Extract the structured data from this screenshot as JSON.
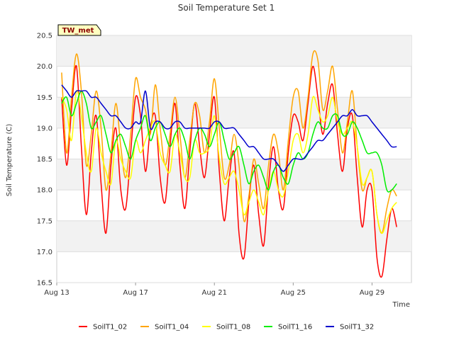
{
  "chart_data": {
    "type": "line",
    "title": "Soil Temperature Set 1",
    "xlabel": "Time",
    "ylabel": "Soil Temperature (C)",
    "badge": "TW_met",
    "x_ticks": [
      "Aug 13",
      "Aug 17",
      "Aug 21",
      "Aug 25",
      "Aug 29"
    ],
    "y_ticks": [
      "16.5",
      "17.0",
      "17.5",
      "18.0",
      "18.5",
      "19.0",
      "19.5",
      "20.0",
      "20.5"
    ],
    "ylim": [
      16.5,
      20.5
    ],
    "xlim": [
      "Aug 13",
      "Aug 31"
    ],
    "grid": true,
    "legend_position": "bottom",
    "x": [
      "Aug 13 06:00",
      "Aug 13 12:00",
      "Aug 13 18:00",
      "Aug 14 00:00",
      "Aug 14 06:00",
      "Aug 14 12:00",
      "Aug 14 18:00",
      "Aug 15 00:00",
      "Aug 15 06:00",
      "Aug 15 12:00",
      "Aug 15 18:00",
      "Aug 16 00:00",
      "Aug 16 06:00",
      "Aug 16 12:00",
      "Aug 16 18:00",
      "Aug 17 00:00",
      "Aug 17 06:00",
      "Aug 17 12:00",
      "Aug 17 18:00",
      "Aug 18 00:00",
      "Aug 18 06:00",
      "Aug 18 12:00",
      "Aug 18 18:00",
      "Aug 19 00:00",
      "Aug 19 06:00",
      "Aug 19 12:00",
      "Aug 19 18:00",
      "Aug 20 00:00",
      "Aug 20 06:00",
      "Aug 20 12:00",
      "Aug 20 18:00",
      "Aug 21 00:00",
      "Aug 21 06:00",
      "Aug 21 12:00",
      "Aug 21 18:00",
      "Aug 22 00:00",
      "Aug 22 06:00",
      "Aug 22 12:00",
      "Aug 22 18:00",
      "Aug 23 00:00",
      "Aug 23 06:00",
      "Aug 23 12:00",
      "Aug 23 18:00",
      "Aug 24 00:00",
      "Aug 24 06:00",
      "Aug 24 12:00",
      "Aug 24 18:00",
      "Aug 25 00:00",
      "Aug 25 06:00",
      "Aug 25 12:00",
      "Aug 25 18:00",
      "Aug 26 00:00",
      "Aug 26 06:00",
      "Aug 26 12:00",
      "Aug 26 18:00",
      "Aug 27 00:00",
      "Aug 27 06:00",
      "Aug 27 12:00",
      "Aug 27 18:00",
      "Aug 28 00:00",
      "Aug 28 06:00",
      "Aug 28 12:00",
      "Aug 28 18:00",
      "Aug 29 00:00",
      "Aug 29 06:00",
      "Aug 29 12:00",
      "Aug 29 18:00",
      "Aug 30 00:00",
      "Aug 30 06:00"
    ],
    "series": [
      {
        "name": "SoilT1_02",
        "color": "#ff0000",
        "values": [
          19.5,
          18.4,
          19.3,
          20.0,
          18.7,
          17.6,
          18.6,
          19.2,
          18.1,
          17.3,
          18.4,
          19.0,
          18.0,
          17.7,
          18.6,
          19.5,
          19.2,
          18.3,
          19.0,
          19.2,
          18.2,
          17.8,
          18.7,
          19.4,
          18.4,
          17.7,
          18.6,
          19.4,
          18.7,
          18.2,
          18.9,
          19.5,
          18.3,
          17.5,
          18.2,
          18.6,
          17.3,
          16.9,
          17.8,
          18.4,
          17.6,
          17.1,
          18.1,
          18.7,
          18.0,
          17.7,
          18.6,
          19.2,
          19.1,
          18.8,
          19.4,
          20.0,
          19.5,
          18.9,
          19.4,
          19.7,
          18.9,
          18.3,
          19.0,
          19.2,
          18.2,
          17.4,
          18.0,
          18.0,
          16.9,
          16.6,
          17.2,
          17.7,
          17.4
        ]
      },
      {
        "name": "SoilT1_04",
        "color": "#ffa500",
        "values": [
          19.9,
          18.6,
          19.5,
          20.2,
          19.6,
          18.4,
          18.9,
          19.6,
          19.0,
          18.0,
          18.6,
          19.4,
          18.7,
          18.2,
          18.9,
          19.8,
          19.5,
          19.3,
          18.9,
          19.7,
          19.0,
          18.4,
          18.9,
          19.5,
          18.9,
          18.2,
          18.8,
          19.4,
          19.2,
          18.6,
          19.1,
          19.8,
          19.0,
          18.2,
          18.4,
          18.9,
          18.4,
          17.5,
          17.9,
          18.5,
          18.1,
          17.7,
          18.4,
          18.9,
          18.6,
          18.0,
          18.8,
          19.5,
          19.6,
          19.0,
          19.5,
          20.2,
          20.1,
          19.3,
          19.6,
          20.0,
          19.3,
          18.6,
          19.1,
          19.6,
          18.7,
          18.0,
          18.2,
          18.3,
          17.6,
          17.3,
          17.7,
          18.0,
          17.9
        ]
      },
      {
        "name": "SoilT1_08",
        "color": "#ffff00",
        "values": [
          19.5,
          19.3,
          18.8,
          19.6,
          19.2,
          18.6,
          18.3,
          19.0,
          18.6,
          18.3,
          18.1,
          18.8,
          18.5,
          18.3,
          18.2,
          18.8,
          18.6,
          18.8,
          19.0,
          19.1,
          18.6,
          18.4,
          18.3,
          18.9,
          18.6,
          18.2,
          18.2,
          18.8,
          18.6,
          18.6,
          18.7,
          19.2,
          18.5,
          18.1,
          18.2,
          18.3,
          18.0,
          17.6,
          17.8,
          18.0,
          17.8,
          17.6,
          18.0,
          18.3,
          18.0,
          17.9,
          18.3,
          18.8,
          18.9,
          18.6,
          18.9,
          19.5,
          19.3,
          19.1,
          19.2,
          19.5,
          19.1,
          18.9,
          19.0,
          19.1,
          18.7,
          18.1,
          18.2,
          18.3,
          17.6,
          17.3,
          17.5,
          17.7,
          17.8
        ]
      },
      {
        "name": "SoilT1_16",
        "color": "#00ee00",
        "values": [
          19.4,
          19.5,
          19.2,
          19.4,
          19.6,
          19.4,
          19.0,
          19.1,
          19.2,
          18.9,
          18.6,
          18.8,
          18.9,
          18.7,
          18.5,
          18.8,
          19.0,
          19.2,
          18.8,
          19.0,
          19.1,
          18.9,
          18.7,
          18.9,
          19.0,
          18.8,
          18.5,
          18.8,
          19.0,
          18.9,
          18.7,
          18.9,
          19.1,
          18.8,
          18.5,
          18.6,
          18.7,
          18.4,
          18.1,
          18.3,
          18.4,
          18.2,
          18.0,
          18.3,
          18.4,
          18.2,
          18.1,
          18.4,
          18.6,
          18.5,
          18.6,
          18.9,
          19.1,
          19.0,
          19.0,
          19.2,
          19.2,
          18.9,
          18.9,
          19.1,
          19.0,
          18.8,
          18.6,
          18.6,
          18.6,
          18.4,
          18.0,
          18.0,
          18.1
        ]
      },
      {
        "name": "SoilT1_32",
        "color": "#0000cc",
        "values": [
          19.7,
          19.6,
          19.5,
          19.6,
          19.6,
          19.6,
          19.5,
          19.5,
          19.4,
          19.3,
          19.2,
          19.2,
          19.1,
          19.0,
          19.0,
          19.1,
          19.1,
          19.6,
          19.0,
          19.1,
          19.1,
          19.0,
          19.0,
          19.1,
          19.1,
          19.0,
          19.0,
          19.0,
          19.0,
          19.0,
          19.0,
          19.1,
          19.1,
          19.0,
          19.0,
          19.0,
          18.9,
          18.8,
          18.7,
          18.7,
          18.6,
          18.5,
          18.5,
          18.5,
          18.4,
          18.3,
          18.4,
          18.5,
          18.5,
          18.5,
          18.6,
          18.7,
          18.8,
          18.8,
          18.9,
          19.0,
          19.1,
          19.2,
          19.2,
          19.3,
          19.2,
          19.2,
          19.2,
          19.1,
          19.0,
          18.9,
          18.8,
          18.7,
          18.7
        ]
      }
    ]
  }
}
